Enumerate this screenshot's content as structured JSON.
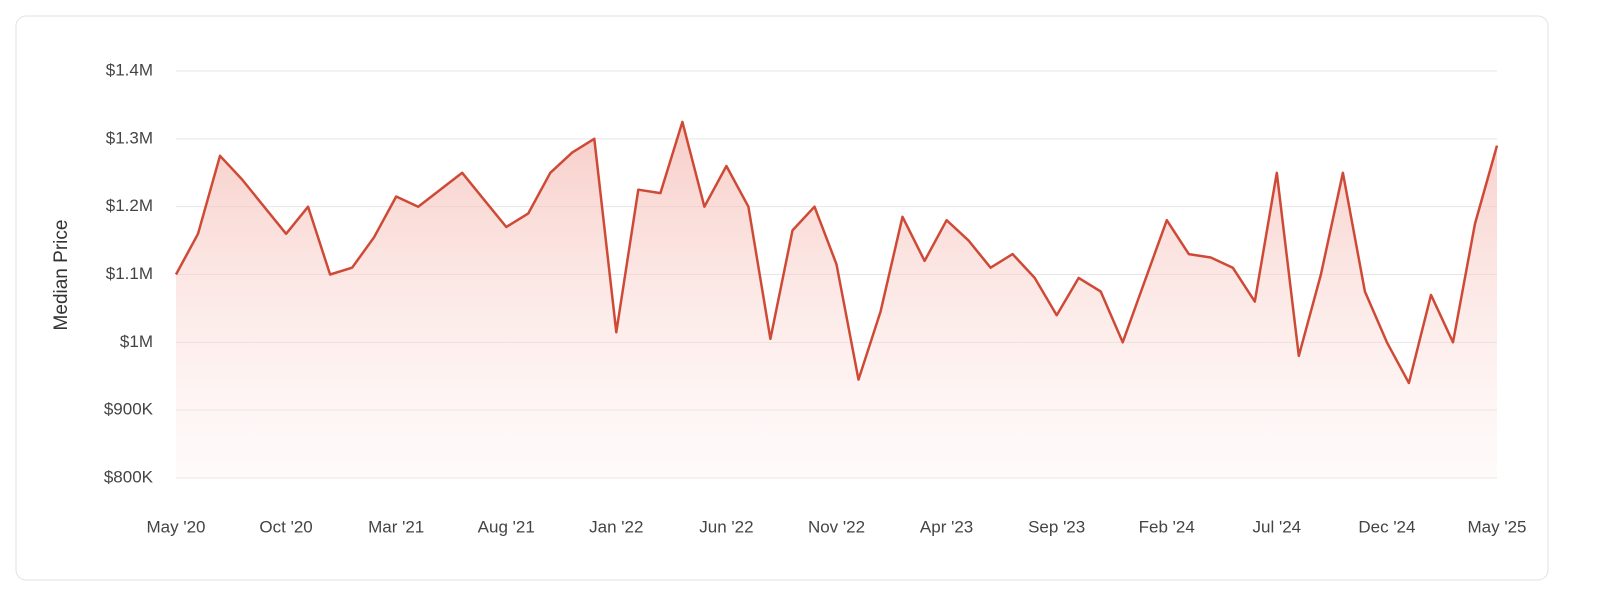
{
  "chart_data": {
    "type": "line",
    "y_label": "Median Price",
    "categories": [
      "May '20",
      null,
      null,
      null,
      null,
      "Oct '20",
      null,
      null,
      null,
      null,
      "Mar '21",
      null,
      null,
      null,
      null,
      "Aug '21",
      null,
      null,
      null,
      null,
      "Jan '22",
      null,
      null,
      null,
      null,
      "Jun '22",
      null,
      null,
      null,
      null,
      "Nov '22",
      null,
      null,
      null,
      null,
      "Apr '23",
      null,
      null,
      null,
      null,
      "Sep '23",
      null,
      null,
      null,
      null,
      "Feb '24",
      null,
      null,
      null,
      null,
      "Jul '24",
      null,
      null,
      null,
      null,
      "Dec '24",
      null,
      null,
      null,
      null,
      "May '25"
    ],
    "values": [
      1100000,
      1160000,
      1275000,
      1240000,
      1200000,
      1160000,
      1200000,
      1100000,
      1110000,
      1155000,
      1215000,
      1200000,
      1225000,
      1250000,
      1210000,
      1170000,
      1190000,
      1250000,
      1280000,
      1300000,
      1015000,
      1225000,
      1220000,
      1325000,
      1200000,
      1260000,
      1200000,
      1005000,
      1165000,
      1200000,
      1115000,
      945000,
      1045000,
      1185000,
      1120000,
      1180000,
      1150000,
      1110000,
      1130000,
      1095000,
      1040000,
      1095000,
      1075000,
      1000000,
      1090000,
      1180000,
      1130000,
      1125000,
      1110000,
      1060000,
      1250000,
      980000,
      1100000,
      1250000,
      1075000,
      1000000,
      940000,
      1070000,
      1000000,
      1175000,
      1290000
    ],
    "color": "#cf4a36",
    "ylim": [
      800000,
      1400000
    ],
    "yticks": [
      {
        "value": 800000,
        "label": "$800K"
      },
      {
        "value": 900000,
        "label": "$900K"
      },
      {
        "value": 1000000,
        "label": "$1M"
      },
      {
        "value": 1100000,
        "label": "$1.1M"
      },
      {
        "value": 1200000,
        "label": "$1.2M"
      },
      {
        "value": 1300000,
        "label": "$1.3M"
      },
      {
        "value": 1400000,
        "label": "$1.4M"
      }
    ],
    "grid": true
  }
}
